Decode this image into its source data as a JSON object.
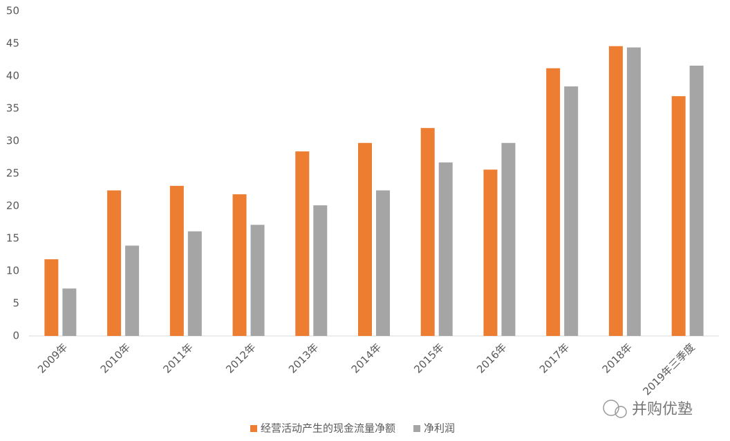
{
  "chart_data": {
    "type": "bar",
    "categories": [
      "2009年",
      "2010年",
      "2011年",
      "2012年",
      "2013年",
      "2014年",
      "2015年",
      "2016年",
      "2017年",
      "2018年",
      "2019年三季度"
    ],
    "series": [
      {
        "name": "经营活动产生的现金流量净额",
        "color": "#ed7d31",
        "values": [
          11.8,
          22.4,
          23.1,
          21.8,
          28.4,
          29.7,
          32.0,
          25.6,
          41.2,
          44.6,
          36.9
        ]
      },
      {
        "name": "净利润",
        "color": "#a5a5a5",
        "values": [
          7.3,
          13.9,
          16.1,
          17.1,
          20.1,
          22.4,
          26.7,
          29.7,
          38.4,
          44.4,
          41.6
        ]
      }
    ],
    "ylim": [
      0,
      50
    ],
    "yticks": [
      0,
      5,
      10,
      15,
      20,
      25,
      30,
      35,
      40,
      45,
      50
    ],
    "grid": false,
    "legend": "bottom",
    "watermark": "并购优塾"
  }
}
